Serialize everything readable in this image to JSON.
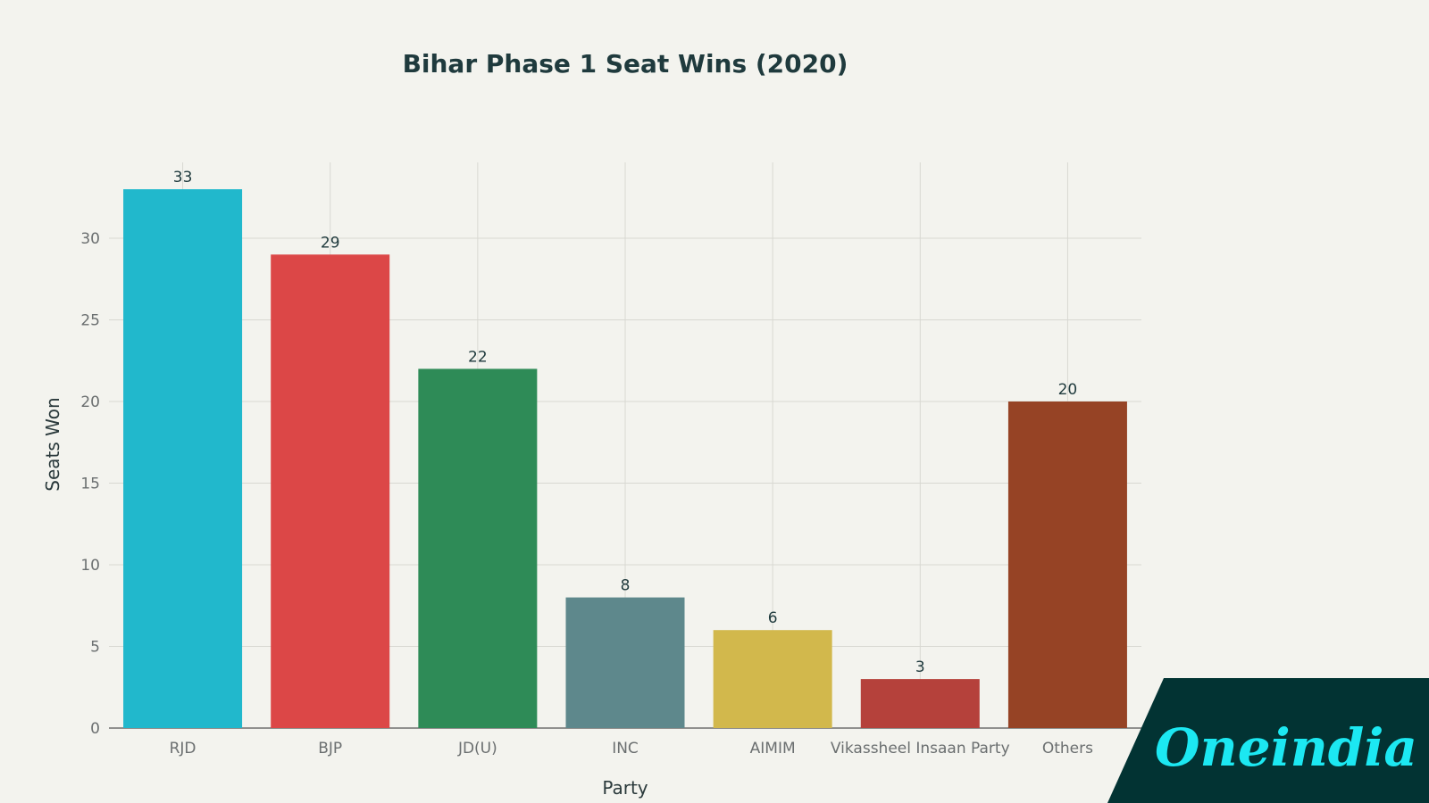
{
  "chart_data": {
    "type": "bar",
    "title": "Bihar Phase 1 Seat Wins (2020)",
    "xlabel": "Party",
    "ylabel": "Seats Won",
    "categories": [
      "RJD",
      "BJP",
      "JD(U)",
      "INC",
      "AIMIM",
      "Vikassheel Insaan Party",
      "Others"
    ],
    "values": [
      33,
      29,
      22,
      8,
      6,
      3,
      20
    ],
    "colors": [
      "#21b8cc",
      "#dc4747",
      "#2e8b57",
      "#5e888c",
      "#d2b84c",
      "#b5413b",
      "#964325"
    ],
    "ylim": [
      0,
      34
    ],
    "yticks": [
      0,
      5,
      10,
      15,
      20,
      25,
      30
    ],
    "grid": true,
    "data_labels": true
  },
  "branding": {
    "logo_text": "Oneindia",
    "logo_bg": "#023333",
    "logo_color": "#1ce8f2"
  }
}
